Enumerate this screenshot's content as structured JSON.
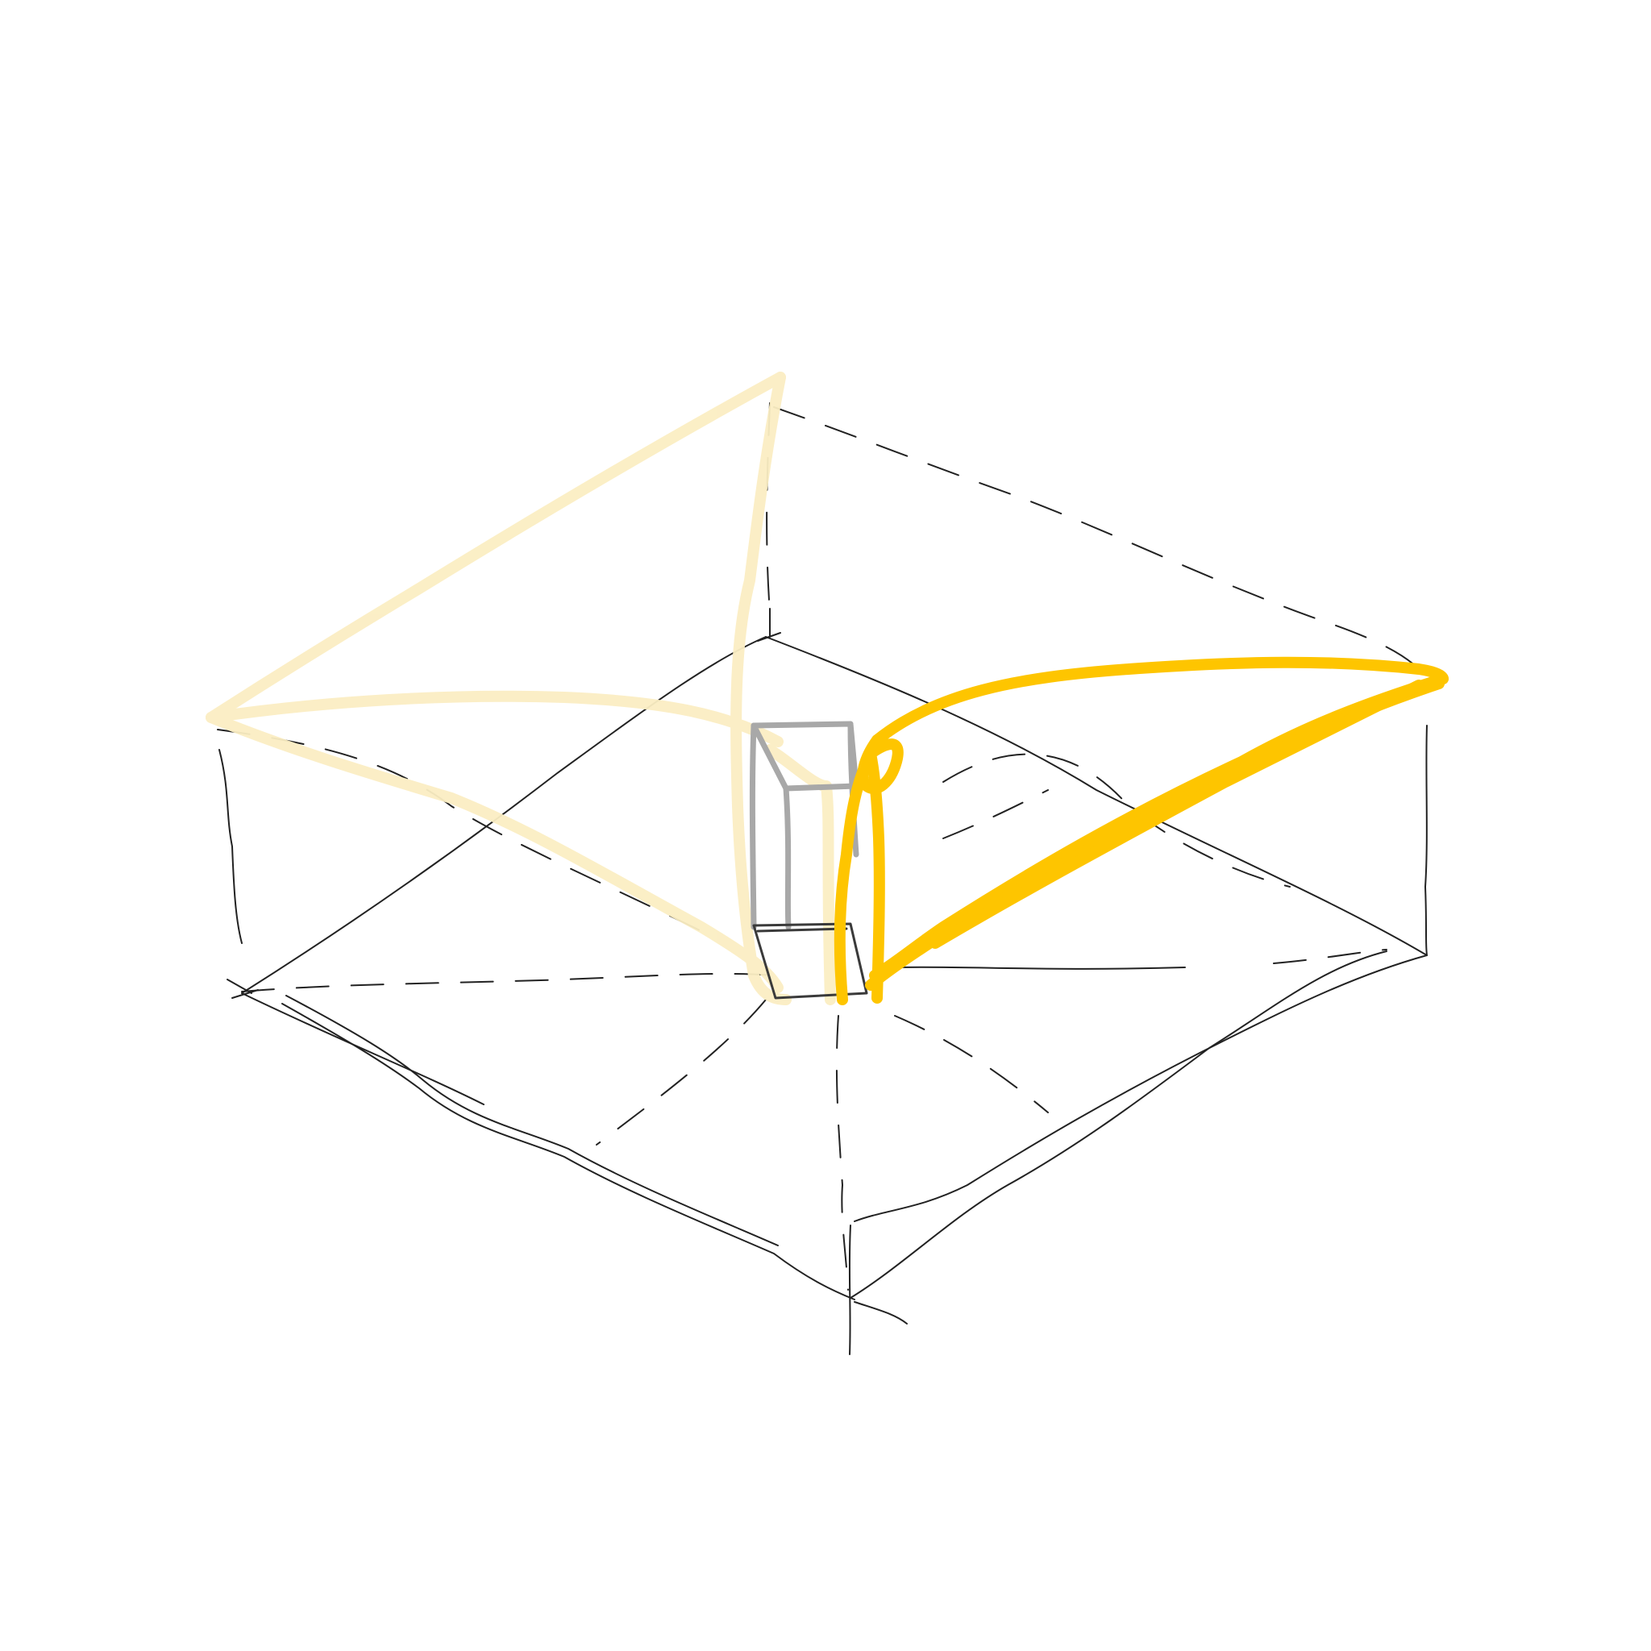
{
  "sketch": {
    "background": "#ffffff",
    "colors": {
      "ink": "#222222",
      "pale_yellow": "#fbeec3",
      "bright_yellow": "#fec500",
      "column_grey": "#a8a8a8"
    }
  }
}
